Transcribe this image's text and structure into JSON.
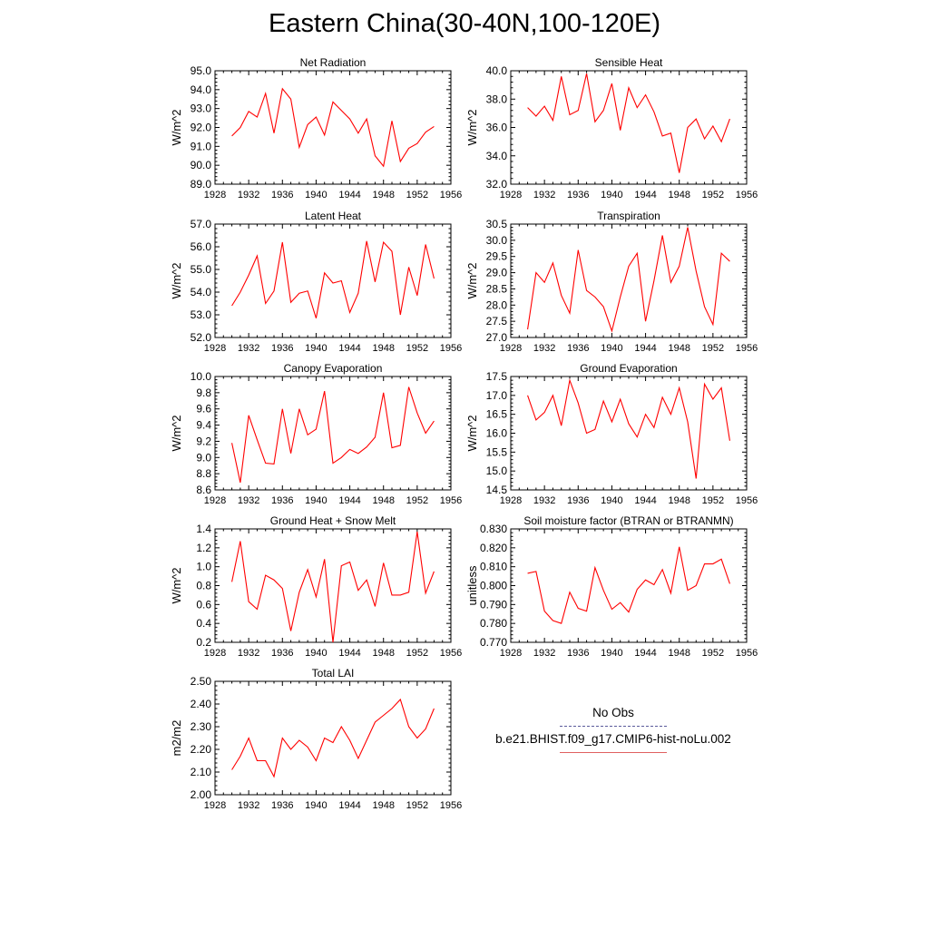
{
  "title": "Eastern China(30-40N,100-120E)",
  "legend": {
    "obs_label": "No Obs",
    "model_label": "b.e21.BHIST.f09_g17.CMIP6-hist-noLu.002",
    "obs_color": "#5a5a9a",
    "model_color": "#ff0000"
  },
  "chart_data": [
    {
      "type": "line",
      "title": "Net Radiation",
      "ylabel": "W/m^2",
      "xlim": [
        1928,
        1956
      ],
      "xticks": [
        1928,
        1932,
        1936,
        1940,
        1944,
        1948,
        1952,
        1956
      ],
      "ylim": [
        89.0,
        95.0
      ],
      "yticks": [
        89.0,
        90.0,
        91.0,
        92.0,
        93.0,
        94.0,
        95.0
      ],
      "ytick_labels": [
        "89.0",
        "90.0",
        "91.0",
        "92.0",
        "93.0",
        "94.0",
        "95.0"
      ],
      "series": [
        {
          "color": "#ff0000",
          "x": [
            1930,
            1931,
            1932,
            1933,
            1934,
            1935,
            1936,
            1937,
            1938,
            1939,
            1940,
            1941,
            1942,
            1943,
            1944,
            1945,
            1946,
            1947,
            1948,
            1949,
            1950,
            1951,
            1952,
            1953,
            1954
          ],
          "values": [
            91.55,
            92.0,
            92.85,
            92.55,
            93.8,
            91.7,
            94.05,
            93.5,
            90.95,
            92.15,
            92.55,
            91.6,
            93.35,
            92.9,
            92.45,
            91.7,
            92.45,
            90.5,
            89.95,
            92.35,
            90.2,
            90.9,
            91.15,
            91.75,
            92.05
          ]
        }
      ]
    },
    {
      "type": "line",
      "title": "Sensible Heat",
      "ylabel": "W/m^2",
      "xlim": [
        1928,
        1956
      ],
      "xticks": [
        1928,
        1932,
        1936,
        1940,
        1944,
        1948,
        1952,
        1956
      ],
      "ylim": [
        32.0,
        40.0
      ],
      "yticks": [
        32.0,
        34.0,
        36.0,
        38.0,
        40.0
      ],
      "ytick_labels": [
        "32.0",
        "34.0",
        "36.0",
        "38.0",
        "40.0"
      ],
      "series": [
        {
          "color": "#ff0000",
          "x": [
            1930,
            1931,
            1932,
            1933,
            1934,
            1935,
            1936,
            1937,
            1938,
            1939,
            1940,
            1941,
            1942,
            1943,
            1944,
            1945,
            1946,
            1947,
            1948,
            1949,
            1950,
            1951,
            1952,
            1953,
            1954
          ],
          "values": [
            37.4,
            36.8,
            37.5,
            36.5,
            39.6,
            36.9,
            37.2,
            39.8,
            36.4,
            37.2,
            39.1,
            35.8,
            38.8,
            37.4,
            38.3,
            37.1,
            35.4,
            35.6,
            32.8,
            36.0,
            36.6,
            35.2,
            36.1,
            35.0,
            36.6
          ]
        }
      ]
    },
    {
      "type": "line",
      "title": "Latent Heat",
      "ylabel": "W/m^2",
      "xlim": [
        1928,
        1956
      ],
      "xticks": [
        1928,
        1932,
        1936,
        1940,
        1944,
        1948,
        1952,
        1956
      ],
      "ylim": [
        52.0,
        57.0
      ],
      "yticks": [
        52.0,
        53.0,
        54.0,
        55.0,
        56.0,
        57.0
      ],
      "ytick_labels": [
        "52.0",
        "53.0",
        "54.0",
        "55.0",
        "56.0",
        "57.0"
      ],
      "series": [
        {
          "color": "#ff0000",
          "x": [
            1930,
            1931,
            1932,
            1933,
            1934,
            1935,
            1936,
            1937,
            1938,
            1939,
            1940,
            1941,
            1942,
            1943,
            1944,
            1945,
            1946,
            1947,
            1948,
            1949,
            1950,
            1951,
            1952,
            1953,
            1954
          ],
          "values": [
            53.4,
            54.0,
            54.75,
            55.6,
            53.5,
            54.05,
            56.2,
            53.55,
            53.95,
            54.05,
            52.85,
            54.85,
            54.4,
            54.5,
            53.1,
            53.95,
            56.25,
            54.45,
            56.2,
            55.8,
            53.0,
            55.1,
            53.85,
            56.1,
            54.6
          ]
        }
      ]
    },
    {
      "type": "line",
      "title": "Transpiration",
      "ylabel": "W/m^2",
      "xlim": [
        1928,
        1956
      ],
      "xticks": [
        1928,
        1932,
        1936,
        1940,
        1944,
        1948,
        1952,
        1956
      ],
      "ylim": [
        27.0,
        30.5
      ],
      "yticks": [
        27.0,
        27.5,
        28.0,
        28.5,
        29.0,
        29.5,
        30.0,
        30.5
      ],
      "ytick_labels": [
        "27.0",
        "27.5",
        "28.0",
        "28.5",
        "29.0",
        "29.5",
        "30.0",
        "30.5"
      ],
      "series": [
        {
          "color": "#ff0000",
          "x": [
            1930,
            1931,
            1932,
            1933,
            1934,
            1935,
            1936,
            1937,
            1938,
            1939,
            1940,
            1941,
            1942,
            1943,
            1944,
            1945,
            1946,
            1947,
            1948,
            1949,
            1950,
            1951,
            1952,
            1953,
            1954
          ],
          "values": [
            27.25,
            29.0,
            28.7,
            29.3,
            28.3,
            27.75,
            29.7,
            28.45,
            28.25,
            27.95,
            27.2,
            28.25,
            29.2,
            29.6,
            27.5,
            28.75,
            30.15,
            28.7,
            29.2,
            30.4,
            29.05,
            27.95,
            27.4,
            29.6,
            29.35
          ]
        }
      ]
    },
    {
      "type": "line",
      "title": "Canopy Evaporation",
      "ylabel": "W/m^2",
      "xlim": [
        1928,
        1956
      ],
      "xticks": [
        1928,
        1932,
        1936,
        1940,
        1944,
        1948,
        1952,
        1956
      ],
      "ylim": [
        8.6,
        10.0
      ],
      "yticks": [
        8.6,
        8.8,
        9.0,
        9.2,
        9.4,
        9.6,
        9.8,
        10.0
      ],
      "ytick_labels": [
        "8.6",
        "8.8",
        "9.0",
        "9.2",
        "9.4",
        "9.6",
        "9.8",
        "10.0"
      ],
      "series": [
        {
          "color": "#ff0000",
          "x": [
            1930,
            1931,
            1932,
            1933,
            1934,
            1935,
            1936,
            1937,
            1938,
            1939,
            1940,
            1941,
            1942,
            1943,
            1944,
            1945,
            1946,
            1947,
            1948,
            1949,
            1950,
            1951,
            1952,
            1953,
            1954
          ],
          "values": [
            9.18,
            8.69,
            9.52,
            9.22,
            8.93,
            8.92,
            9.6,
            9.05,
            9.6,
            9.28,
            9.35,
            9.82,
            8.93,
            9.0,
            9.1,
            9.05,
            9.13,
            9.25,
            9.8,
            9.12,
            9.15,
            9.87,
            9.55,
            9.3,
            9.45
          ]
        }
      ]
    },
    {
      "type": "line",
      "title": "Ground Evaporation",
      "ylabel": "W/m^2",
      "xlim": [
        1928,
        1956
      ],
      "xticks": [
        1928,
        1932,
        1936,
        1940,
        1944,
        1948,
        1952,
        1956
      ],
      "ylim": [
        14.5,
        17.5
      ],
      "yticks": [
        14.5,
        15.0,
        15.5,
        16.0,
        16.5,
        17.0,
        17.5
      ],
      "ytick_labels": [
        "14.5",
        "15.0",
        "15.5",
        "16.0",
        "16.5",
        "17.0",
        "17.5"
      ],
      "series": [
        {
          "color": "#ff0000",
          "x": [
            1930,
            1931,
            1932,
            1933,
            1934,
            1935,
            1936,
            1937,
            1938,
            1939,
            1940,
            1941,
            1942,
            1943,
            1944,
            1945,
            1946,
            1947,
            1948,
            1949,
            1950,
            1951,
            1952,
            1953,
            1954
          ],
          "values": [
            17.0,
            16.35,
            16.55,
            17.0,
            16.2,
            17.4,
            16.8,
            16.0,
            16.1,
            16.85,
            16.3,
            16.9,
            16.25,
            15.9,
            16.5,
            16.15,
            16.95,
            16.5,
            17.2,
            16.3,
            14.8,
            17.3,
            16.9,
            17.2,
            15.8
          ]
        }
      ]
    },
    {
      "type": "line",
      "title": "Ground Heat + Snow Melt",
      "ylabel": "W/m^2",
      "xlim": [
        1928,
        1956
      ],
      "xticks": [
        1928,
        1932,
        1936,
        1940,
        1944,
        1948,
        1952,
        1956
      ],
      "ylim": [
        0.2,
        1.4
      ],
      "yticks": [
        0.2,
        0.4,
        0.6,
        0.8,
        1.0,
        1.2,
        1.4
      ],
      "ytick_labels": [
        "0.2",
        "0.4",
        "0.6",
        "0.8",
        "1.0",
        "1.2",
        "1.4"
      ],
      "series": [
        {
          "color": "#ff0000",
          "x": [
            1930,
            1931,
            1932,
            1933,
            1934,
            1935,
            1936,
            1937,
            1938,
            1939,
            1940,
            1941,
            1942,
            1943,
            1944,
            1945,
            1946,
            1947,
            1948,
            1949,
            1950,
            1951,
            1952,
            1953,
            1954
          ],
          "values": [
            0.84,
            1.27,
            0.63,
            0.55,
            0.91,
            0.86,
            0.77,
            0.32,
            0.73,
            0.97,
            0.68,
            1.08,
            0.2,
            1.01,
            1.05,
            0.75,
            0.86,
            0.58,
            1.04,
            0.7,
            0.7,
            0.73,
            1.37,
            0.72,
            0.95
          ]
        }
      ]
    },
    {
      "type": "line",
      "title": "Soil moisture factor (BTRAN or BTRANMN)",
      "ylabel": "unitless",
      "xlim": [
        1928,
        1956
      ],
      "xticks": [
        1928,
        1932,
        1936,
        1940,
        1944,
        1948,
        1952,
        1956
      ],
      "ylim": [
        0.77,
        0.83
      ],
      "yticks": [
        0.77,
        0.78,
        0.79,
        0.8,
        0.81,
        0.82,
        0.83
      ],
      "ytick_labels": [
        "0.770",
        "0.780",
        "0.790",
        "0.800",
        "0.810",
        "0.820",
        "0.830"
      ],
      "series": [
        {
          "color": "#ff0000",
          "x": [
            1930,
            1931,
            1932,
            1933,
            1934,
            1935,
            1936,
            1937,
            1938,
            1939,
            1940,
            1941,
            1942,
            1943,
            1944,
            1945,
            1946,
            1947,
            1948,
            1949,
            1950,
            1951,
            1952,
            1953,
            1954
          ],
          "values": [
            0.8065,
            0.8075,
            0.7865,
            0.7815,
            0.78,
            0.7965,
            0.788,
            0.7865,
            0.8095,
            0.7975,
            0.7875,
            0.791,
            0.786,
            0.798,
            0.803,
            0.8005,
            0.8085,
            0.796,
            0.8205,
            0.7975,
            0.8,
            0.8115,
            0.8115,
            0.814,
            0.801
          ]
        }
      ]
    },
    {
      "type": "line",
      "title": "Total LAI",
      "ylabel": "m2/m2",
      "xlim": [
        1928,
        1956
      ],
      "xticks": [
        1928,
        1932,
        1936,
        1940,
        1944,
        1948,
        1952,
        1956
      ],
      "ylim": [
        2.0,
        2.5
      ],
      "yticks": [
        2.0,
        2.1,
        2.2,
        2.3,
        2.4,
        2.5
      ],
      "ytick_labels": [
        "2.00",
        "2.10",
        "2.20",
        "2.30",
        "2.40",
        "2.50"
      ],
      "series": [
        {
          "color": "#ff0000",
          "x": [
            1930,
            1931,
            1932,
            1933,
            1934,
            1935,
            1936,
            1937,
            1938,
            1939,
            1940,
            1941,
            1942,
            1943,
            1944,
            1945,
            1946,
            1947,
            1948,
            1949,
            1950,
            1951,
            1952,
            1953,
            1954
          ],
          "values": [
            2.11,
            2.17,
            2.25,
            2.15,
            2.15,
            2.08,
            2.25,
            2.2,
            2.24,
            2.21,
            2.15,
            2.25,
            2.23,
            2.3,
            2.24,
            2.16,
            2.24,
            2.32,
            2.35,
            2.38,
            2.42,
            2.3,
            2.25,
            2.29,
            2.38
          ]
        }
      ]
    }
  ]
}
